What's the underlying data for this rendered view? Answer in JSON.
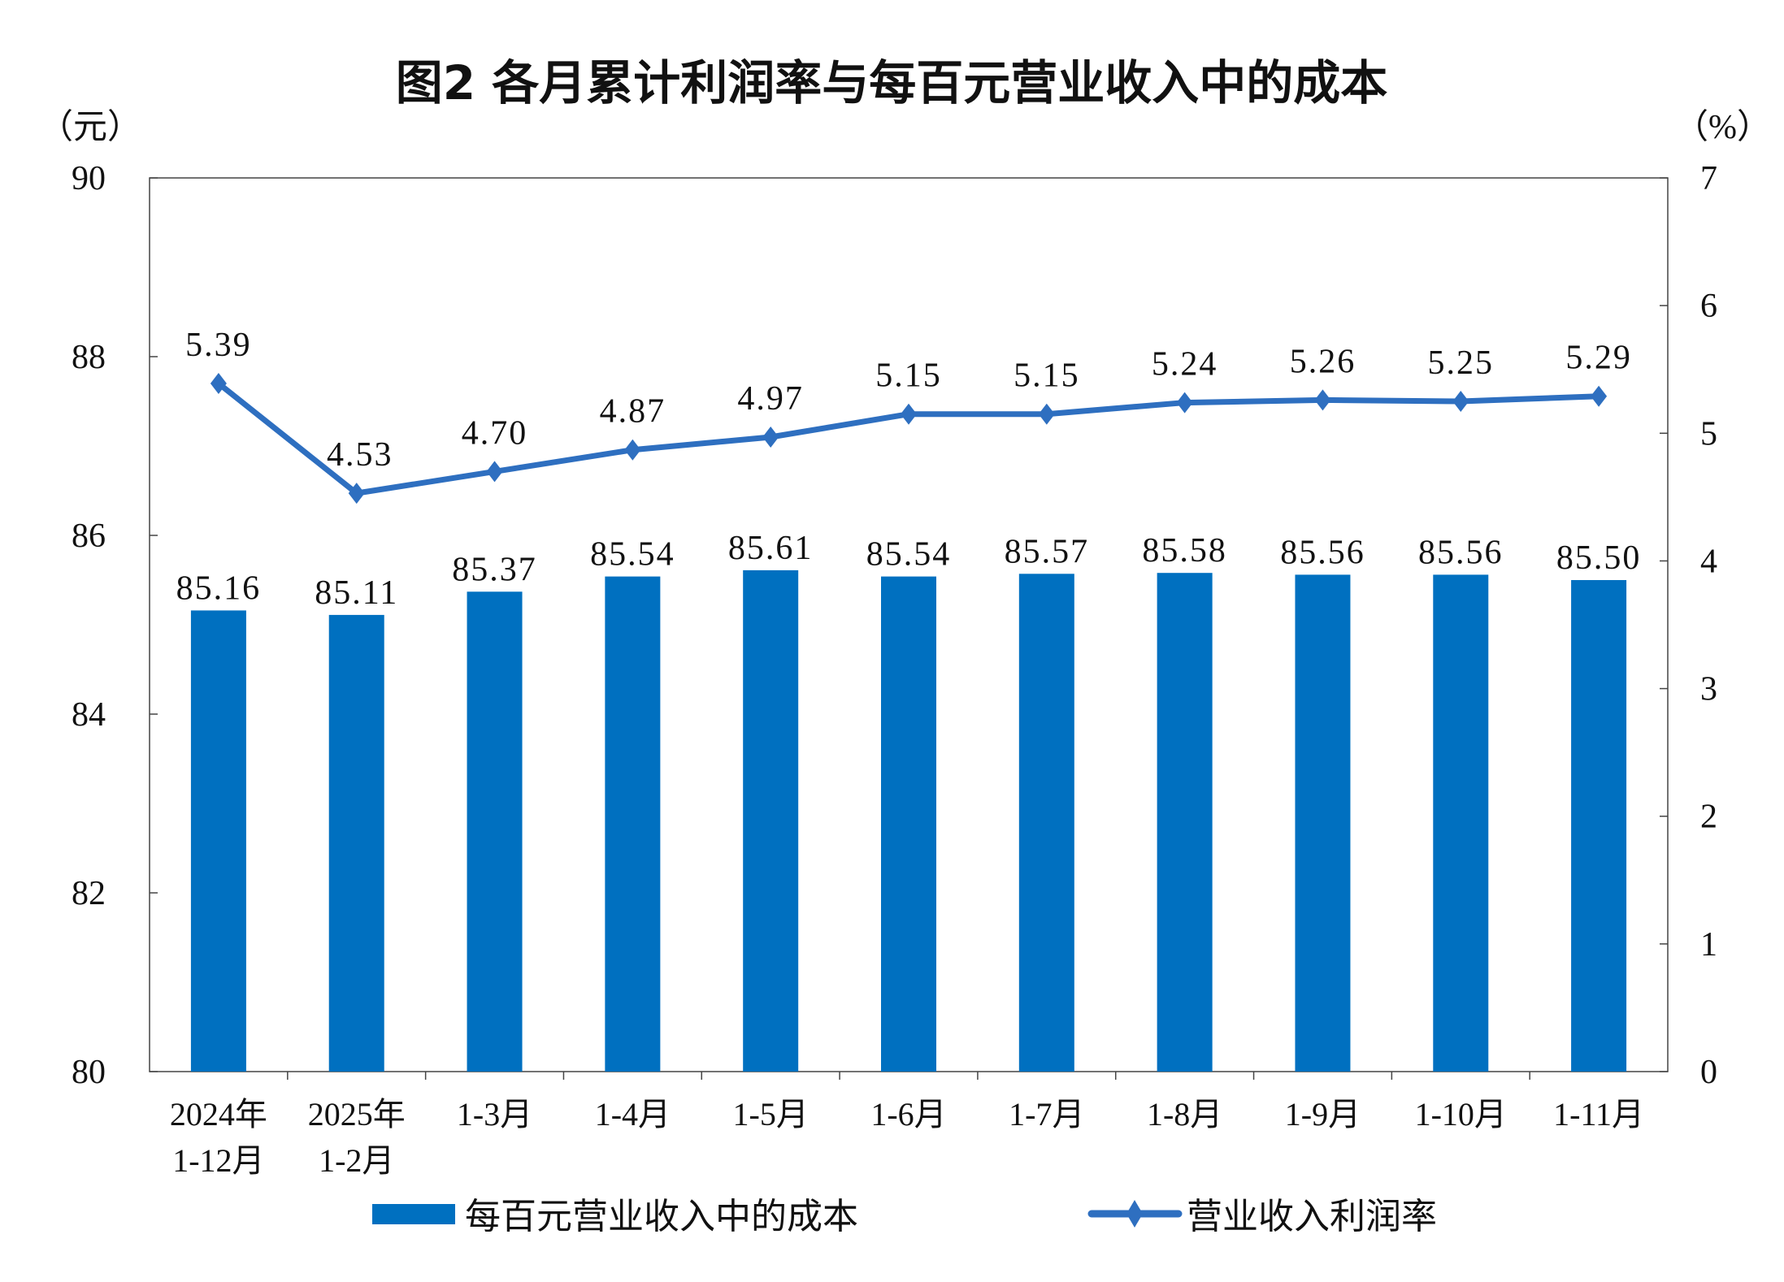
{
  "chart_data": {
    "type": "bar+line",
    "title": "图2  各月累计利润率与每百元营业收入中的成本",
    "left_unit": "（元）",
    "right_unit": "（%）",
    "categories": [
      [
        "2024年",
        "1-12月"
      ],
      [
        "2025年",
        "1-2月"
      ],
      [
        "1-3月"
      ],
      [
        "1-4月"
      ],
      [
        "1-5月"
      ],
      [
        "1-6月"
      ],
      [
        "1-7月"
      ],
      [
        "1-8月"
      ],
      [
        "1-9月"
      ],
      [
        "1-10月"
      ],
      [
        "1-11月"
      ]
    ],
    "left_axis": {
      "min": 80,
      "max": 90,
      "ticks": [
        80,
        82,
        84,
        86,
        88,
        90
      ]
    },
    "right_axis": {
      "min": 0,
      "max": 7,
      "ticks": [
        0,
        1,
        2,
        3,
        4,
        5,
        6,
        7
      ]
    },
    "series": [
      {
        "name": "每百元营业收入中的成本",
        "type": "bar",
        "axis": "left",
        "color": "#0070c0",
        "values": [
          85.16,
          85.11,
          85.37,
          85.54,
          85.61,
          85.54,
          85.57,
          85.58,
          85.56,
          85.56,
          85.5
        ],
        "labels": [
          "85.16",
          "85.11",
          "85.37",
          "85.54",
          "85.61",
          "85.54",
          "85.57",
          "85.58",
          "85.56",
          "85.56",
          "85.50"
        ]
      },
      {
        "name": "营业收入利润率",
        "type": "line",
        "axis": "right",
        "color": "#2e6fc0",
        "marker": "diamond",
        "values": [
          5.39,
          4.53,
          4.7,
          4.87,
          4.97,
          5.15,
          5.15,
          5.24,
          5.26,
          5.25,
          5.29
        ],
        "labels": [
          "5.39",
          "4.53",
          "4.70",
          "4.87",
          "4.97",
          "5.15",
          "5.15",
          "5.24",
          "5.26",
          "5.25",
          "5.29"
        ]
      }
    ],
    "legend": "bottom",
    "grid": false
  }
}
